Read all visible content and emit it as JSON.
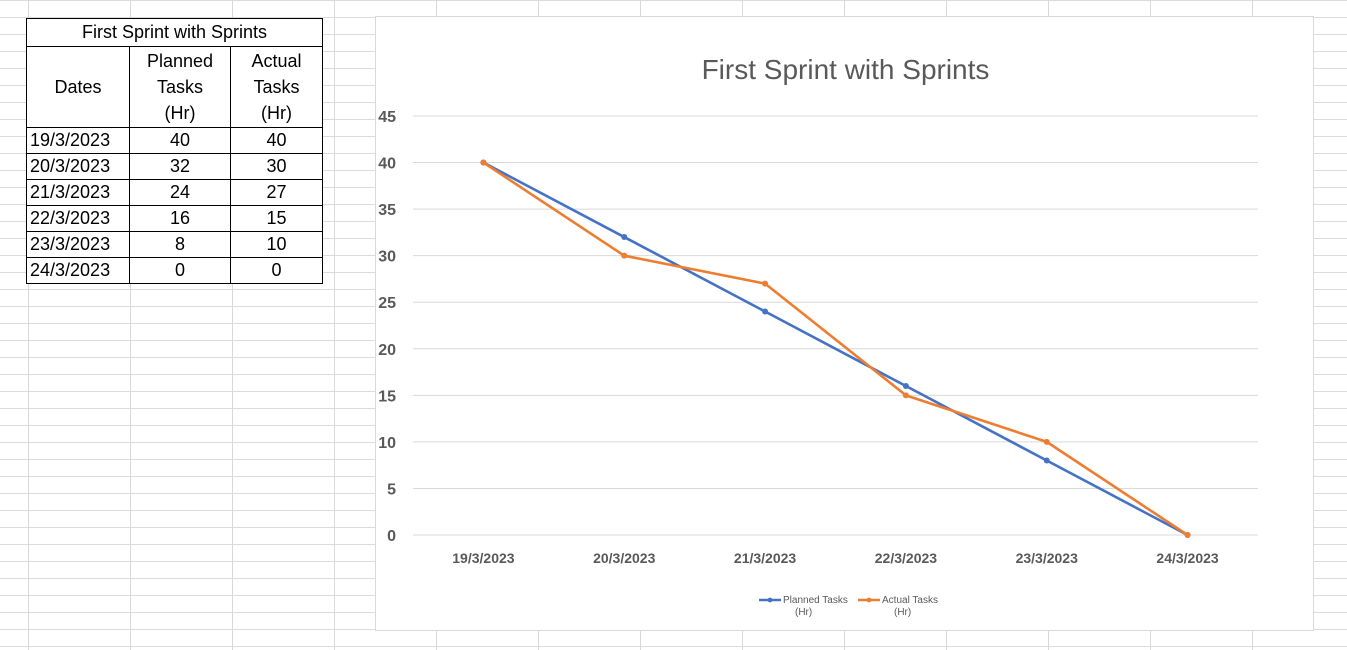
{
  "table": {
    "title": "First Sprint with Sprints",
    "headers": {
      "dates": "Dates",
      "planned": [
        "Planned",
        "Tasks",
        "(Hr)"
      ],
      "actual": [
        "Actual",
        "Tasks",
        "(Hr)"
      ]
    },
    "rows": [
      {
        "date": "19/3/2023",
        "planned": "40",
        "actual": "40"
      },
      {
        "date": "20/3/2023",
        "planned": "32",
        "actual": "30"
      },
      {
        "date": "21/3/2023",
        "planned": "24",
        "actual": "27"
      },
      {
        "date": "22/3/2023",
        "planned": "16",
        "actual": "15"
      },
      {
        "date": "23/3/2023",
        "planned": "8",
        "actual": "10"
      },
      {
        "date": "24/3/2023",
        "planned": "0",
        "actual": "0"
      }
    ]
  },
  "chart_data": {
    "type": "line",
    "title": "First Sprint with Sprints",
    "xlabel": "",
    "ylabel": "",
    "categories": [
      "19/3/2023",
      "20/3/2023",
      "21/3/2023",
      "22/3/2023",
      "23/3/2023",
      "24/3/2023"
    ],
    "ylim": [
      0,
      45
    ],
    "yticks": [
      0,
      5,
      10,
      15,
      20,
      25,
      30,
      35,
      40,
      45
    ],
    "grid": true,
    "legend_position": "bottom",
    "series": [
      {
        "name": "Planned Tasks (Hr)",
        "legend_lines": [
          "Planned Tasks",
          "(Hr)"
        ],
        "color": "#4472C4",
        "values": [
          40,
          32,
          24,
          16,
          8,
          0
        ]
      },
      {
        "name": "Actual Tasks (Hr)",
        "legend_lines": [
          "Actual Tasks",
          "(Hr)"
        ],
        "color": "#ED7D31",
        "values": [
          40,
          30,
          27,
          15,
          10,
          0
        ]
      }
    ]
  }
}
